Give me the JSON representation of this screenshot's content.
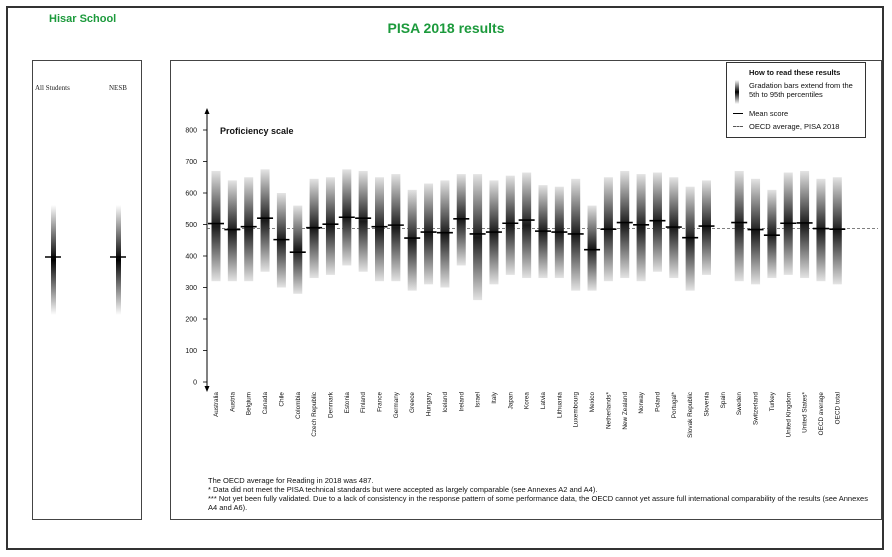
{
  "header": {
    "school": "Hisar School",
    "title": "PISA 2018 results"
  },
  "left_panel": {
    "columns": [
      "All Students",
      "NESB"
    ],
    "means": [
      400,
      400
    ]
  },
  "legend": {
    "title": "How to read these results",
    "gradation": "Gradation bars extend from the 5th to 95th percentiles",
    "mean": "Mean score",
    "oecd": "OECD average, PISA 2018"
  },
  "footnotes": [
    "The OECD average for Reading in 2018 was 487.",
    "*   Data did not meet the PISA technical standards but were accepted as largely comparable (see Annexes A2 and A4).",
    "***  Not yet been fully validated. Due to a lack of consistency in the response pattern of some performance data, the OECD cannot yet assure full international comparability of the results (see Annexes A4 and A6)."
  ],
  "chart_data": {
    "type": "bar",
    "title": "Proficiency scale",
    "ylim": [
      0,
      800
    ],
    "yticks": [
      0,
      100,
      200,
      300,
      400,
      500,
      600,
      700,
      800
    ],
    "oecd_average": 487,
    "categories": [
      "Australia",
      "Austria",
      "Belgium",
      "Canada",
      "Chile",
      "Colombia",
      "Czech Republic",
      "Denmark",
      "Estonia",
      "Finland",
      "France",
      "Germany",
      "Greece",
      "Hungary",
      "Iceland",
      "Ireland",
      "Israel",
      "Italy",
      "Japan",
      "Korea",
      "Latvia",
      "Lithuania",
      "Luxembourg",
      "Mexico",
      "Netherlands*",
      "New Zealand",
      "Norway",
      "Poland",
      "Portugal*",
      "Slovak Republic",
      "Slovenia",
      "Spain",
      "Sweden",
      "Switzerland",
      "Turkey",
      "United Kingdom",
      "United States*",
      "OECD average",
      "OECD total"
    ],
    "mean": [
      503,
      484,
      493,
      520,
      452,
      412,
      490,
      501,
      523,
      520,
      493,
      498,
      457,
      476,
      474,
      518,
      470,
      476,
      504,
      514,
      479,
      476,
      470,
      420,
      485,
      506,
      499,
      512,
      492,
      458,
      495,
      null,
      506,
      484,
      466,
      504,
      505,
      487,
      485
    ],
    "p5": [
      320,
      320,
      320,
      350,
      300,
      280,
      330,
      340,
      370,
      350,
      320,
      320,
      290,
      310,
      300,
      370,
      260,
      310,
      340,
      330,
      330,
      330,
      290,
      290,
      320,
      330,
      320,
      350,
      330,
      290,
      340,
      null,
      320,
      310,
      330,
      340,
      330,
      320,
      310
    ],
    "p95": [
      670,
      640,
      650,
      675,
      600,
      560,
      645,
      650,
      675,
      670,
      650,
      660,
      610,
      630,
      640,
      660,
      660,
      640,
      655,
      665,
      625,
      620,
      645,
      560,
      650,
      670,
      660,
      665,
      650,
      620,
      640,
      null,
      670,
      645,
      610,
      665,
      670,
      645,
      650
    ]
  }
}
